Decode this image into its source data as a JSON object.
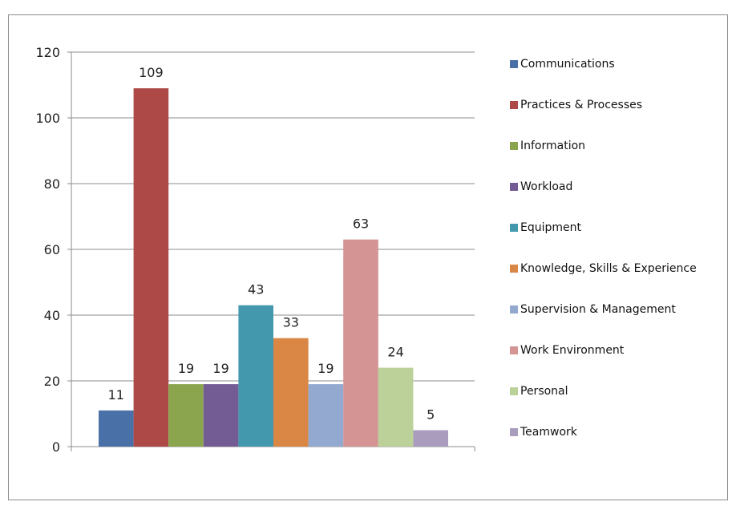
{
  "chart_data": {
    "type": "bar",
    "title": "",
    "xlabel": "",
    "ylabel": "",
    "ylim": [
      0,
      120
    ],
    "yticks": [
      0,
      20,
      40,
      60,
      80,
      100,
      120
    ],
    "grid": true,
    "legend_position": "right",
    "series": [
      {
        "name": "Communications",
        "value": 11,
        "color": "#4a70a8"
      },
      {
        "name": "Practices & Processes",
        "value": 109,
        "color": "#ad4a48"
      },
      {
        "name": "Information",
        "value": 19,
        "color": "#8aa54e"
      },
      {
        "name": "Workload",
        "value": 19,
        "color": "#735b93"
      },
      {
        "name": "Equipment",
        "value": 43,
        "color": "#4498ad"
      },
      {
        "name": "Knowledge, Skills & Experience",
        "value": 33,
        "color": "#da8645"
      },
      {
        "name": "Supervision & Management",
        "value": 19,
        "color": "#93a9d0"
      },
      {
        "name": "Work Environment",
        "value": 63,
        "color": "#d39493"
      },
      {
        "name": "Personal",
        "value": 24,
        "color": "#bcd09a"
      },
      {
        "name": "Teamwork",
        "value": 5,
        "color": "#a99cbd"
      }
    ]
  }
}
